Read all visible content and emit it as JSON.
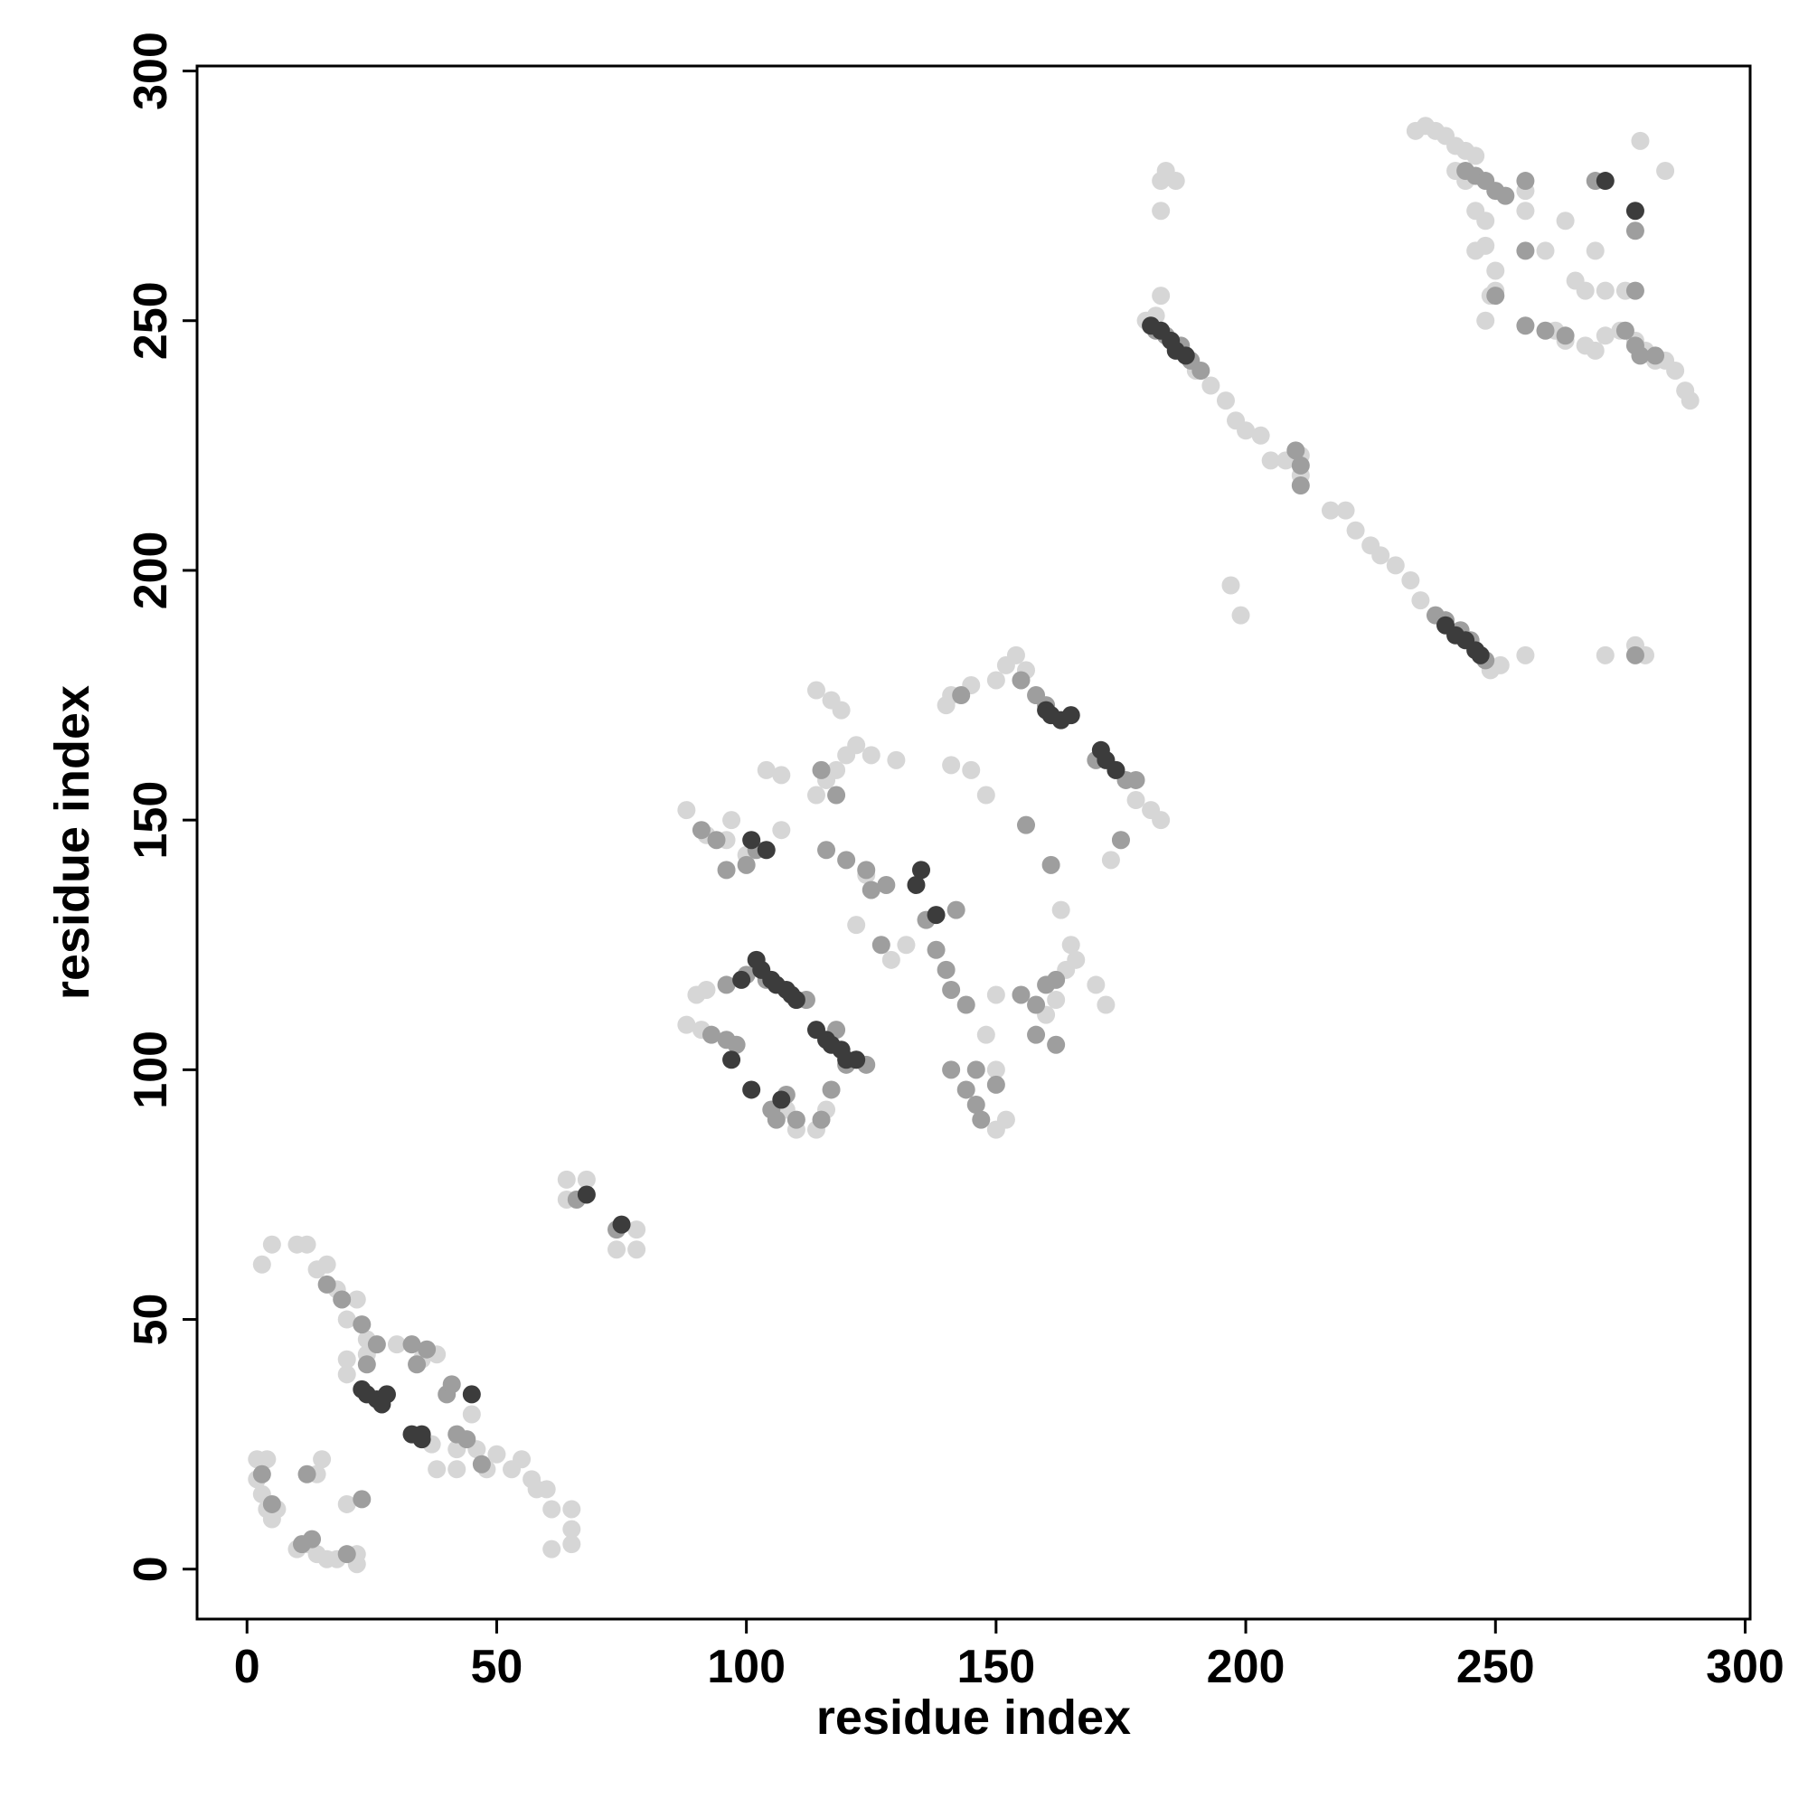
{
  "chart_data": {
    "type": "scatter",
    "xlabel": "residue index",
    "ylabel": "residue index",
    "xlim": [
      -10,
      301
    ],
    "ylim": [
      -10,
      301
    ],
    "xticks": [
      0,
      50,
      100,
      150,
      200,
      250,
      300
    ],
    "yticks": [
      0,
      50,
      100,
      150,
      200,
      250,
      300
    ],
    "grid": false,
    "series": [
      {
        "color": "#d6d6d6",
        "x": [
          2,
          4,
          2,
          3,
          4,
          6,
          5,
          3,
          5,
          10,
          12,
          14,
          16,
          18,
          20,
          22,
          20,
          20,
          24,
          24,
          30,
          35,
          38,
          37,
          38,
          42,
          42,
          46,
          45,
          48,
          50,
          53,
          55,
          57,
          58,
          60,
          61,
          61,
          65,
          65,
          65,
          15,
          14,
          20,
          12,
          14,
          16,
          18,
          22,
          22,
          10,
          64,
          68,
          64,
          78,
          78,
          74,
          88,
          88,
          90,
          92,
          96,
          97,
          100,
          104,
          104,
          107,
          107,
          91,
          92,
          110,
          108,
          114,
          116,
          114,
          116,
          118,
          120,
          122,
          125,
          114,
          117,
          119,
          130,
          122,
          124,
          129,
          132,
          140,
          145,
          141,
          148,
          150,
          152,
          148,
          150,
          150,
          160,
          162,
          164,
          166,
          170,
          172,
          173,
          175,
          178,
          181,
          183,
          152,
          154,
          156,
          150,
          145,
          141,
          163,
          165,
          180,
          182,
          183,
          183,
          184,
          183,
          186,
          190,
          193,
          196,
          198,
          200,
          203,
          205,
          208,
          211,
          211,
          217,
          220,
          222,
          225,
          227,
          230,
          233,
          235,
          197,
          199,
          249,
          251,
          256,
          272,
          278,
          280,
          234,
          236,
          238,
          240,
          242,
          244,
          246,
          242,
          244,
          246,
          248,
          248,
          246,
          250,
          250,
          248,
          249,
          256,
          256,
          260,
          264,
          266,
          262,
          264,
          268,
          270,
          272,
          275,
          278,
          280,
          282,
          284,
          286,
          288,
          289,
          279,
          284,
          270,
          276,
          272,
          268
        ],
        "y": [
          22,
          22,
          18,
          15,
          12,
          12,
          10,
          61,
          65,
          65,
          65,
          60,
          61,
          56,
          50,
          54,
          42,
          39,
          46,
          43,
          45,
          42,
          43,
          25,
          20,
          20,
          24,
          24,
          31,
          20,
          23,
          20,
          22,
          18,
          16,
          16,
          12,
          4,
          12,
          8,
          5,
          22,
          19,
          13,
          5,
          3,
          2,
          2,
          1,
          3,
          4,
          78,
          78,
          74,
          68,
          64,
          64,
          152,
          109,
          115,
          147,
          146,
          150,
          143,
          144,
          160,
          159,
          148,
          108,
          116,
          88,
          92,
          88,
          92,
          155,
          158,
          160,
          163,
          165,
          163,
          176,
          174,
          172,
          162,
          129,
          139,
          122,
          125,
          173,
          160,
          161,
          155,
          88,
          90,
          107,
          100,
          115,
          111,
          114,
          120,
          122,
          117,
          113,
          142,
          146,
          154,
          152,
          150,
          181,
          183,
          180,
          178,
          177,
          175,
          132,
          125,
          250,
          251,
          255,
          278,
          280,
          272,
          278,
          240,
          237,
          234,
          230,
          228,
          227,
          222,
          222,
          219,
          223,
          212,
          212,
          208,
          205,
          203,
          201,
          198,
          194,
          197,
          191,
          180,
          181,
          183,
          183,
          185,
          183,
          288,
          289,
          288,
          287,
          285,
          284,
          283,
          280,
          278,
          272,
          270,
          265,
          264,
          260,
          256,
          250,
          255,
          276,
          272,
          264,
          270,
          258,
          248,
          246,
          245,
          244,
          247,
          248,
          246,
          244,
          242,
          242,
          240,
          236,
          234,
          286,
          280,
          264,
          256,
          256,
          256
        ]
      },
      {
        "color": "#9e9e9e",
        "x": [
          3,
          5,
          11,
          13,
          20,
          16,
          19,
          23,
          24,
          26,
          33,
          34,
          36,
          40,
          41,
          42,
          44,
          47,
          23,
          12,
          28,
          66,
          74,
          91,
          94,
          96,
          100,
          102,
          93,
          96,
          98,
          96,
          100,
          105,
          106,
          108,
          110,
          115,
          117,
          120,
          122,
          124,
          115,
          118,
          116,
          120,
          124,
          125,
          128,
          136,
          138,
          140,
          141,
          144,
          141,
          144,
          146,
          147,
          150,
          155,
          158,
          160,
          162,
          156,
          161,
          162,
          158,
          142,
          175,
          178,
          170,
          174,
          158,
          160,
          155,
          143,
          176,
          146,
          112,
          110,
          104,
          118,
          127,
          182,
          184,
          187,
          189,
          191,
          211,
          211,
          210,
          238,
          240,
          243,
          245,
          247,
          248,
          278,
          244,
          246,
          248,
          250,
          252,
          256,
          256,
          250,
          256,
          260,
          264,
          276,
          278,
          279,
          282,
          278,
          270,
          278
        ],
        "y": [
          19,
          13,
          5,
          6,
          3,
          57,
          54,
          49,
          41,
          45,
          45,
          41,
          44,
          35,
          37,
          27,
          26,
          21,
          14,
          19,
          35,
          74,
          68,
          148,
          146,
          140,
          141,
          144,
          107,
          106,
          105,
          117,
          119,
          92,
          90,
          95,
          90,
          90,
          96,
          101,
          102,
          101,
          160,
          155,
          144,
          142,
          140,
          136,
          137,
          130,
          124,
          120,
          116,
          113,
          100,
          96,
          93,
          90,
          97,
          115,
          113,
          117,
          118,
          149,
          141,
          105,
          107,
          132,
          146,
          158,
          162,
          160,
          175,
          173,
          178,
          175,
          158,
          100,
          114,
          114,
          118,
          108,
          125,
          248,
          247,
          245,
          242,
          240,
          217,
          221,
          224,
          191,
          190,
          188,
          186,
          183,
          182,
          183,
          280,
          279,
          278,
          276,
          275,
          278,
          264,
          255,
          249,
          248,
          247,
          248,
          245,
          243,
          243,
          256,
          278,
          268
        ]
      },
      {
        "color": "#3c3c3c",
        "x": [
          26,
          27,
          28,
          33,
          35,
          35,
          45,
          23,
          24,
          68,
          75,
          102,
          103,
          105,
          106,
          108,
          109,
          110,
          101,
          107,
          114,
          116,
          117,
          119,
          120,
          122,
          97,
          99,
          134,
          135,
          138,
          160,
          163,
          165,
          171,
          172,
          174,
          161,
          104,
          101,
          181,
          183,
          185,
          186,
          188,
          240,
          242,
          244,
          246,
          247,
          272,
          278
        ],
        "y": [
          34,
          33,
          35,
          27,
          27,
          26,
          35,
          36,
          35,
          75,
          69,
          122,
          120,
          118,
          117,
          116,
          115,
          114,
          96,
          94,
          108,
          106,
          105,
          104,
          102,
          102,
          102,
          118,
          137,
          140,
          131,
          172,
          170,
          171,
          164,
          162,
          160,
          171,
          144,
          146,
          249,
          248,
          246,
          244,
          243,
          189,
          187,
          186,
          184,
          183,
          278,
          272
        ]
      }
    ]
  }
}
